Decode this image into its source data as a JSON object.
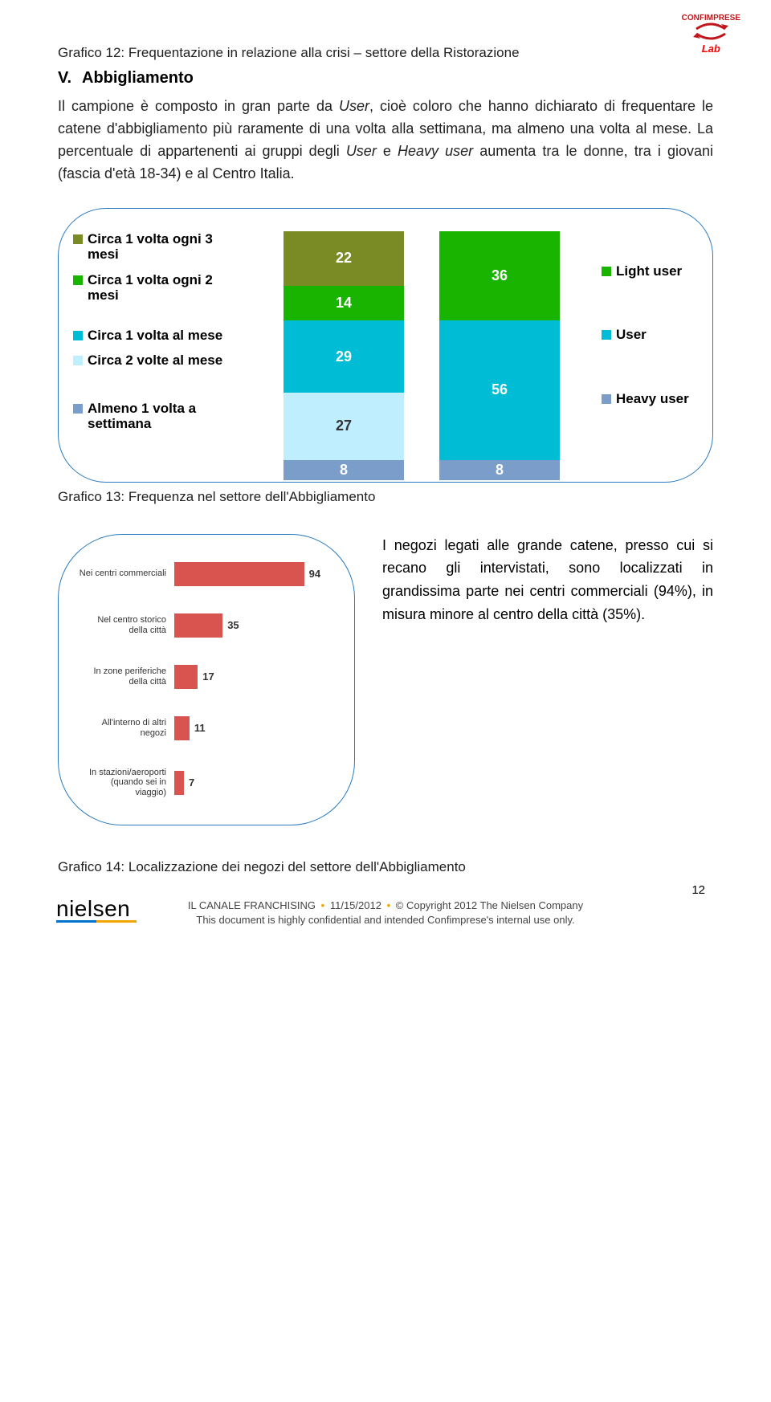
{
  "logo": {
    "brand": "CONFIMPRESE",
    "sub": "Lab"
  },
  "caption12": "Grafico 12: Frequentazione in relazione alla crisi – settore della Ristorazione",
  "sectionV": {
    "num": "V.",
    "title": "Abbigliamento"
  },
  "para1_a": "Il campione è composto in gran parte da ",
  "para1_user": "User",
  "para1_b": ", cioè coloro che hanno dichiarato di frequentare le catene d'abbigliamento più raramente di una volta alla settimana, ma almeno una volta al mese. La percentuale di appartenenti ai gruppi degli ",
  "para1_c": " e ",
  "para1_heavy": "Heavy user ",
  "para1_d": "aumenta tra le donne, tra i giovani (fascia d'età 18-34) e al Centro Italia.",
  "chart13": {
    "leftLegend": [
      {
        "label": "Circa 1 volta ogni 3 mesi",
        "color": "#7a8a24"
      },
      {
        "label": "Circa 1 volta ogni 2 mesi",
        "color": "#19b400"
      },
      {
        "label": "Circa 1 volta al mese",
        "color": "#00bcd4"
      },
      {
        "label": "Circa 2 volte al mese",
        "color": "#bfefff"
      },
      {
        "label": "Almeno 1 volta a settimana",
        "color": "#7a9ec9"
      }
    ],
    "leftBar": [
      {
        "v": 8,
        "c": "#7a9ec9"
      },
      {
        "v": 27,
        "c": "#bfefff",
        "txt": "#333"
      },
      {
        "v": 29,
        "c": "#00bcd4"
      },
      {
        "v": 14,
        "c": "#19b400"
      },
      {
        "v": 22,
        "c": "#7a8a24"
      }
    ],
    "rightBar": [
      {
        "v": 8,
        "c": "#7a9ec9"
      },
      {
        "v": 56,
        "c": "#00bcd4"
      },
      {
        "v": 36,
        "c": "#19b400"
      }
    ],
    "rightLegend": [
      {
        "label": "Light user",
        "color": "#19b400"
      },
      {
        "label": "User",
        "color": "#00bcd4"
      },
      {
        "label": "Heavy user",
        "color": "#7a9ec9"
      }
    ],
    "pxPerUnit": 3.1
  },
  "caption13": "Grafico 13: Frequenza nel settore dell'Abbigliamento",
  "chart14": {
    "color": "#d9534f",
    "max": 100,
    "rows": [
      {
        "label": "Nei centri commerciali",
        "v": 94
      },
      {
        "label": "Nel centro storico della città",
        "v": 35
      },
      {
        "label": "In zone periferiche della città",
        "v": 17
      },
      {
        "label": "All'interno di altri negozi",
        "v": 11
      },
      {
        "label": "In stazioni/aeroporti (quando sei in viaggio)",
        "v": 7
      }
    ]
  },
  "sideText": "I negozi legati alle grande catene, presso cui si recano gli intervistati, sono localizzati in grandissima parte nei centri commerciali (94%), in misura minore al centro della città (35%).",
  "caption14": "Grafico 14: Localizzazione dei negozi del settore dell'Abbigliamento",
  "pageNum": "12",
  "footer": {
    "l1a": "IL CANALE FRANCHISING",
    "l1b": "11/15/2012",
    "l1c": "© Copyright 2012 The Nielsen Company",
    "l2": "This document is highly confidential and intended Confimprese's internal use only."
  },
  "nielsen": "nielsen"
}
